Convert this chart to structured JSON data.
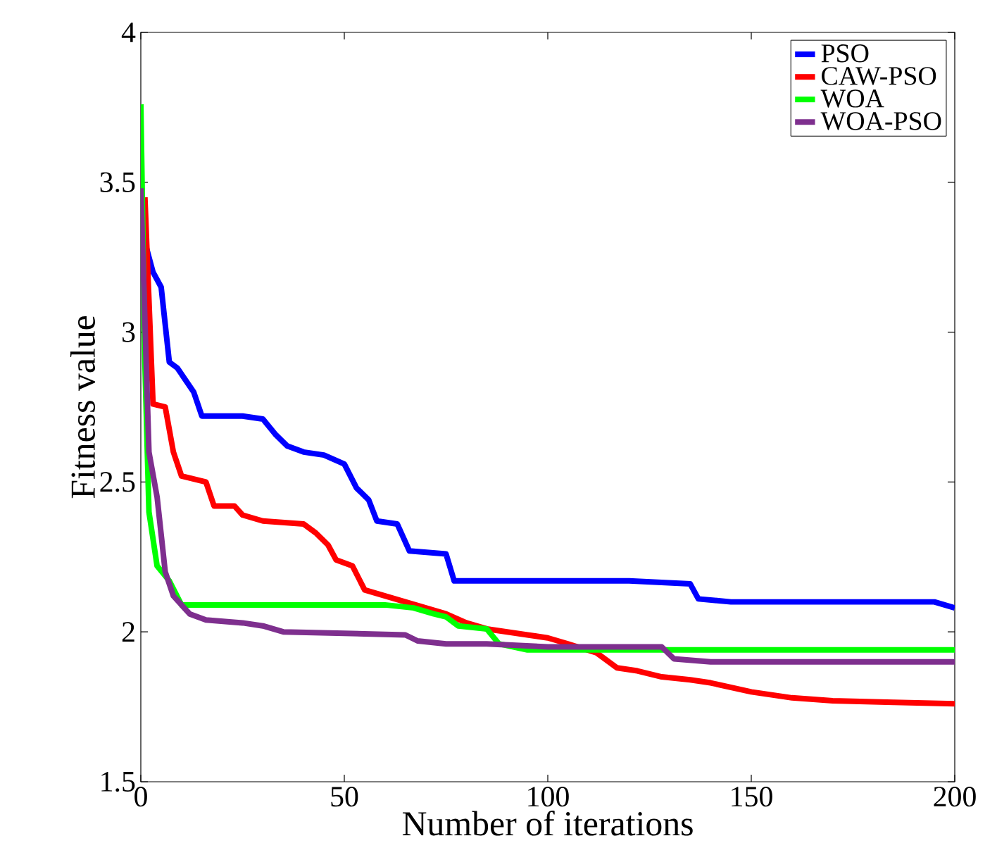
{
  "chart_data": {
    "type": "line",
    "xlabel": "Number of iterations",
    "ylabel": "Fitness value",
    "xlim": [
      0,
      200
    ],
    "ylim": [
      1.5,
      4
    ],
    "xticks": [
      0,
      50,
      100,
      150,
      200
    ],
    "yticks": [
      1.5,
      2,
      2.5,
      3,
      3.5,
      4
    ],
    "grid": false,
    "legend": "top right",
    "line_style": "solid",
    "marker": "none",
    "series": [
      {
        "name": "PSO",
        "color": "#0000ff",
        "x": [
          1,
          3,
          5,
          7,
          9,
          11,
          13,
          15,
          25,
          30,
          33,
          36,
          40,
          45,
          50,
          53,
          56,
          58,
          63,
          66,
          75,
          77,
          100,
          120,
          135,
          137,
          145,
          195,
          200
        ],
        "values": [
          3.3,
          3.2,
          3.15,
          2.9,
          2.88,
          2.84,
          2.8,
          2.72,
          2.72,
          2.71,
          2.66,
          2.62,
          2.6,
          2.59,
          2.56,
          2.48,
          2.44,
          2.37,
          2.36,
          2.27,
          2.26,
          2.17,
          2.17,
          2.17,
          2.16,
          2.11,
          2.1,
          2.1,
          2.08
        ]
      },
      {
        "name": "CAW-PSO",
        "color": "#ff0000",
        "x": [
          1,
          3,
          6,
          8,
          10,
          16,
          18,
          23,
          25,
          30,
          40,
          43,
          46,
          48,
          52,
          55,
          60,
          65,
          70,
          75,
          80,
          85,
          90,
          95,
          100,
          105,
          112,
          117,
          122,
          128,
          135,
          140,
          150,
          160,
          170,
          185,
          200
        ],
        "values": [
          3.45,
          2.76,
          2.75,
          2.6,
          2.52,
          2.5,
          2.42,
          2.42,
          2.39,
          2.37,
          2.36,
          2.33,
          2.29,
          2.24,
          2.22,
          2.14,
          2.12,
          2.1,
          2.08,
          2.06,
          2.03,
          2.01,
          2.0,
          1.99,
          1.98,
          1.96,
          1.93,
          1.88,
          1.87,
          1.85,
          1.84,
          1.83,
          1.8,
          1.78,
          1.77,
          1.765,
          1.76
        ]
      },
      {
        "name": "WOA",
        "color": "#00ff00",
        "x": [
          0,
          1,
          2,
          4,
          7,
          10,
          30,
          60,
          67,
          72,
          75,
          78,
          85,
          88,
          95,
          110,
          200
        ],
        "values": [
          3.76,
          2.9,
          2.4,
          2.22,
          2.17,
          2.09,
          2.09,
          2.09,
          2.08,
          2.06,
          2.05,
          2.02,
          2.01,
          1.96,
          1.94,
          1.94,
          1.94
        ]
      },
      {
        "name": "WOA-PSO",
        "color": "#7e2f8e",
        "x": [
          0,
          2,
          4,
          6,
          8,
          12,
          16,
          25,
          30,
          35,
          50,
          65,
          68,
          75,
          85,
          100,
          128,
          131,
          140,
          200
        ],
        "values": [
          3.48,
          2.6,
          2.45,
          2.2,
          2.12,
          2.06,
          2.04,
          2.03,
          2.02,
          2.0,
          1.995,
          1.99,
          1.97,
          1.96,
          1.96,
          1.95,
          1.95,
          1.91,
          1.9,
          1.9
        ]
      }
    ]
  }
}
